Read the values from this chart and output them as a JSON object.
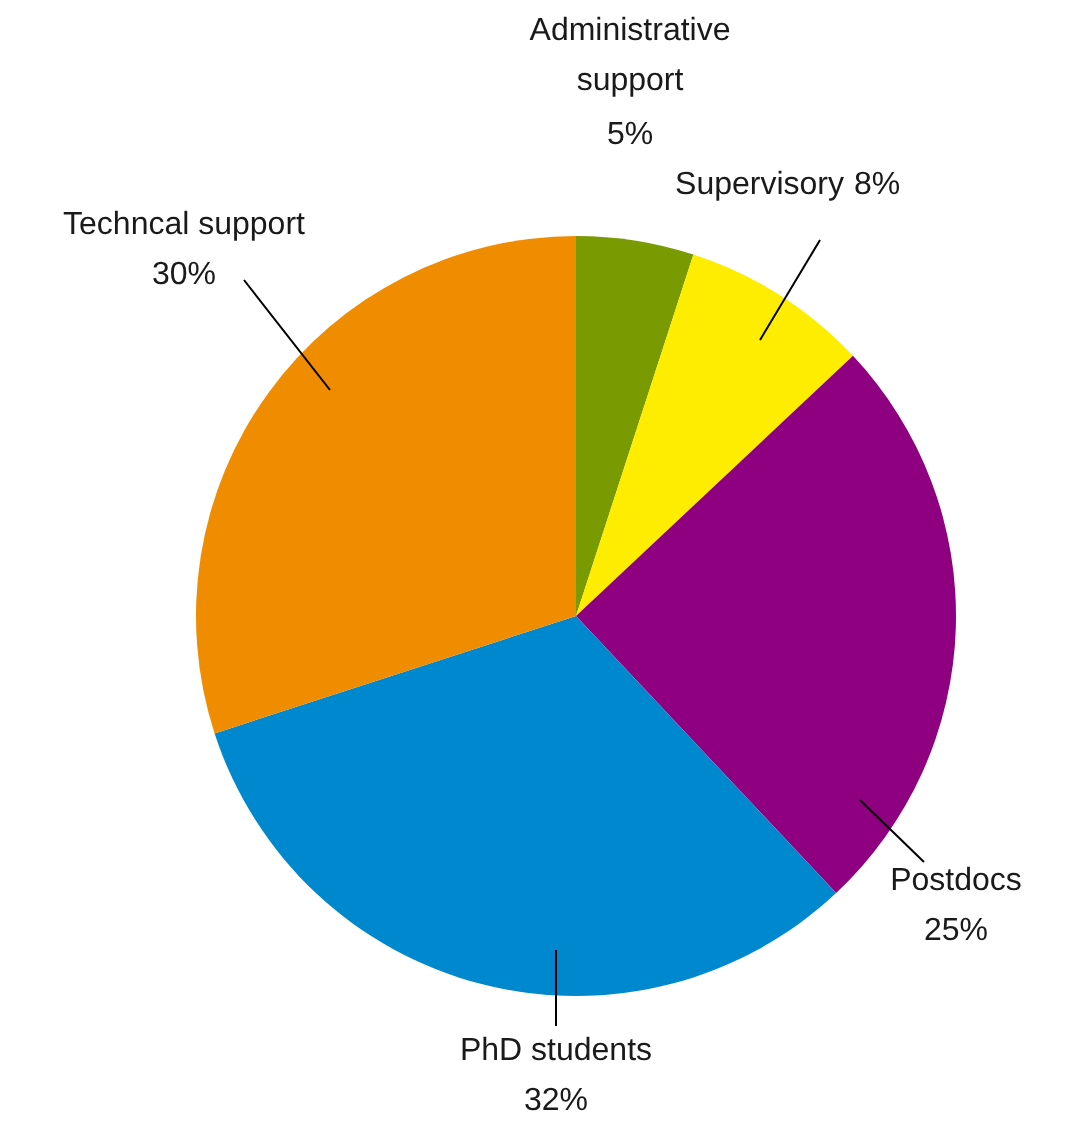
{
  "chart_data": {
    "type": "pie",
    "categories": [
      "Administrative support",
      "Supervisory",
      "Postdocs",
      "PhD students",
      "Techncal support"
    ],
    "values": [
      5,
      8,
      25,
      32,
      30
    ],
    "value_labels": [
      "5%",
      "8%",
      "25%",
      "32%",
      "30%"
    ],
    "colors": [
      "#7a9a01",
      "#ffed00",
      "#8e0080",
      "#0088cf",
      "#f08c00"
    ]
  }
}
